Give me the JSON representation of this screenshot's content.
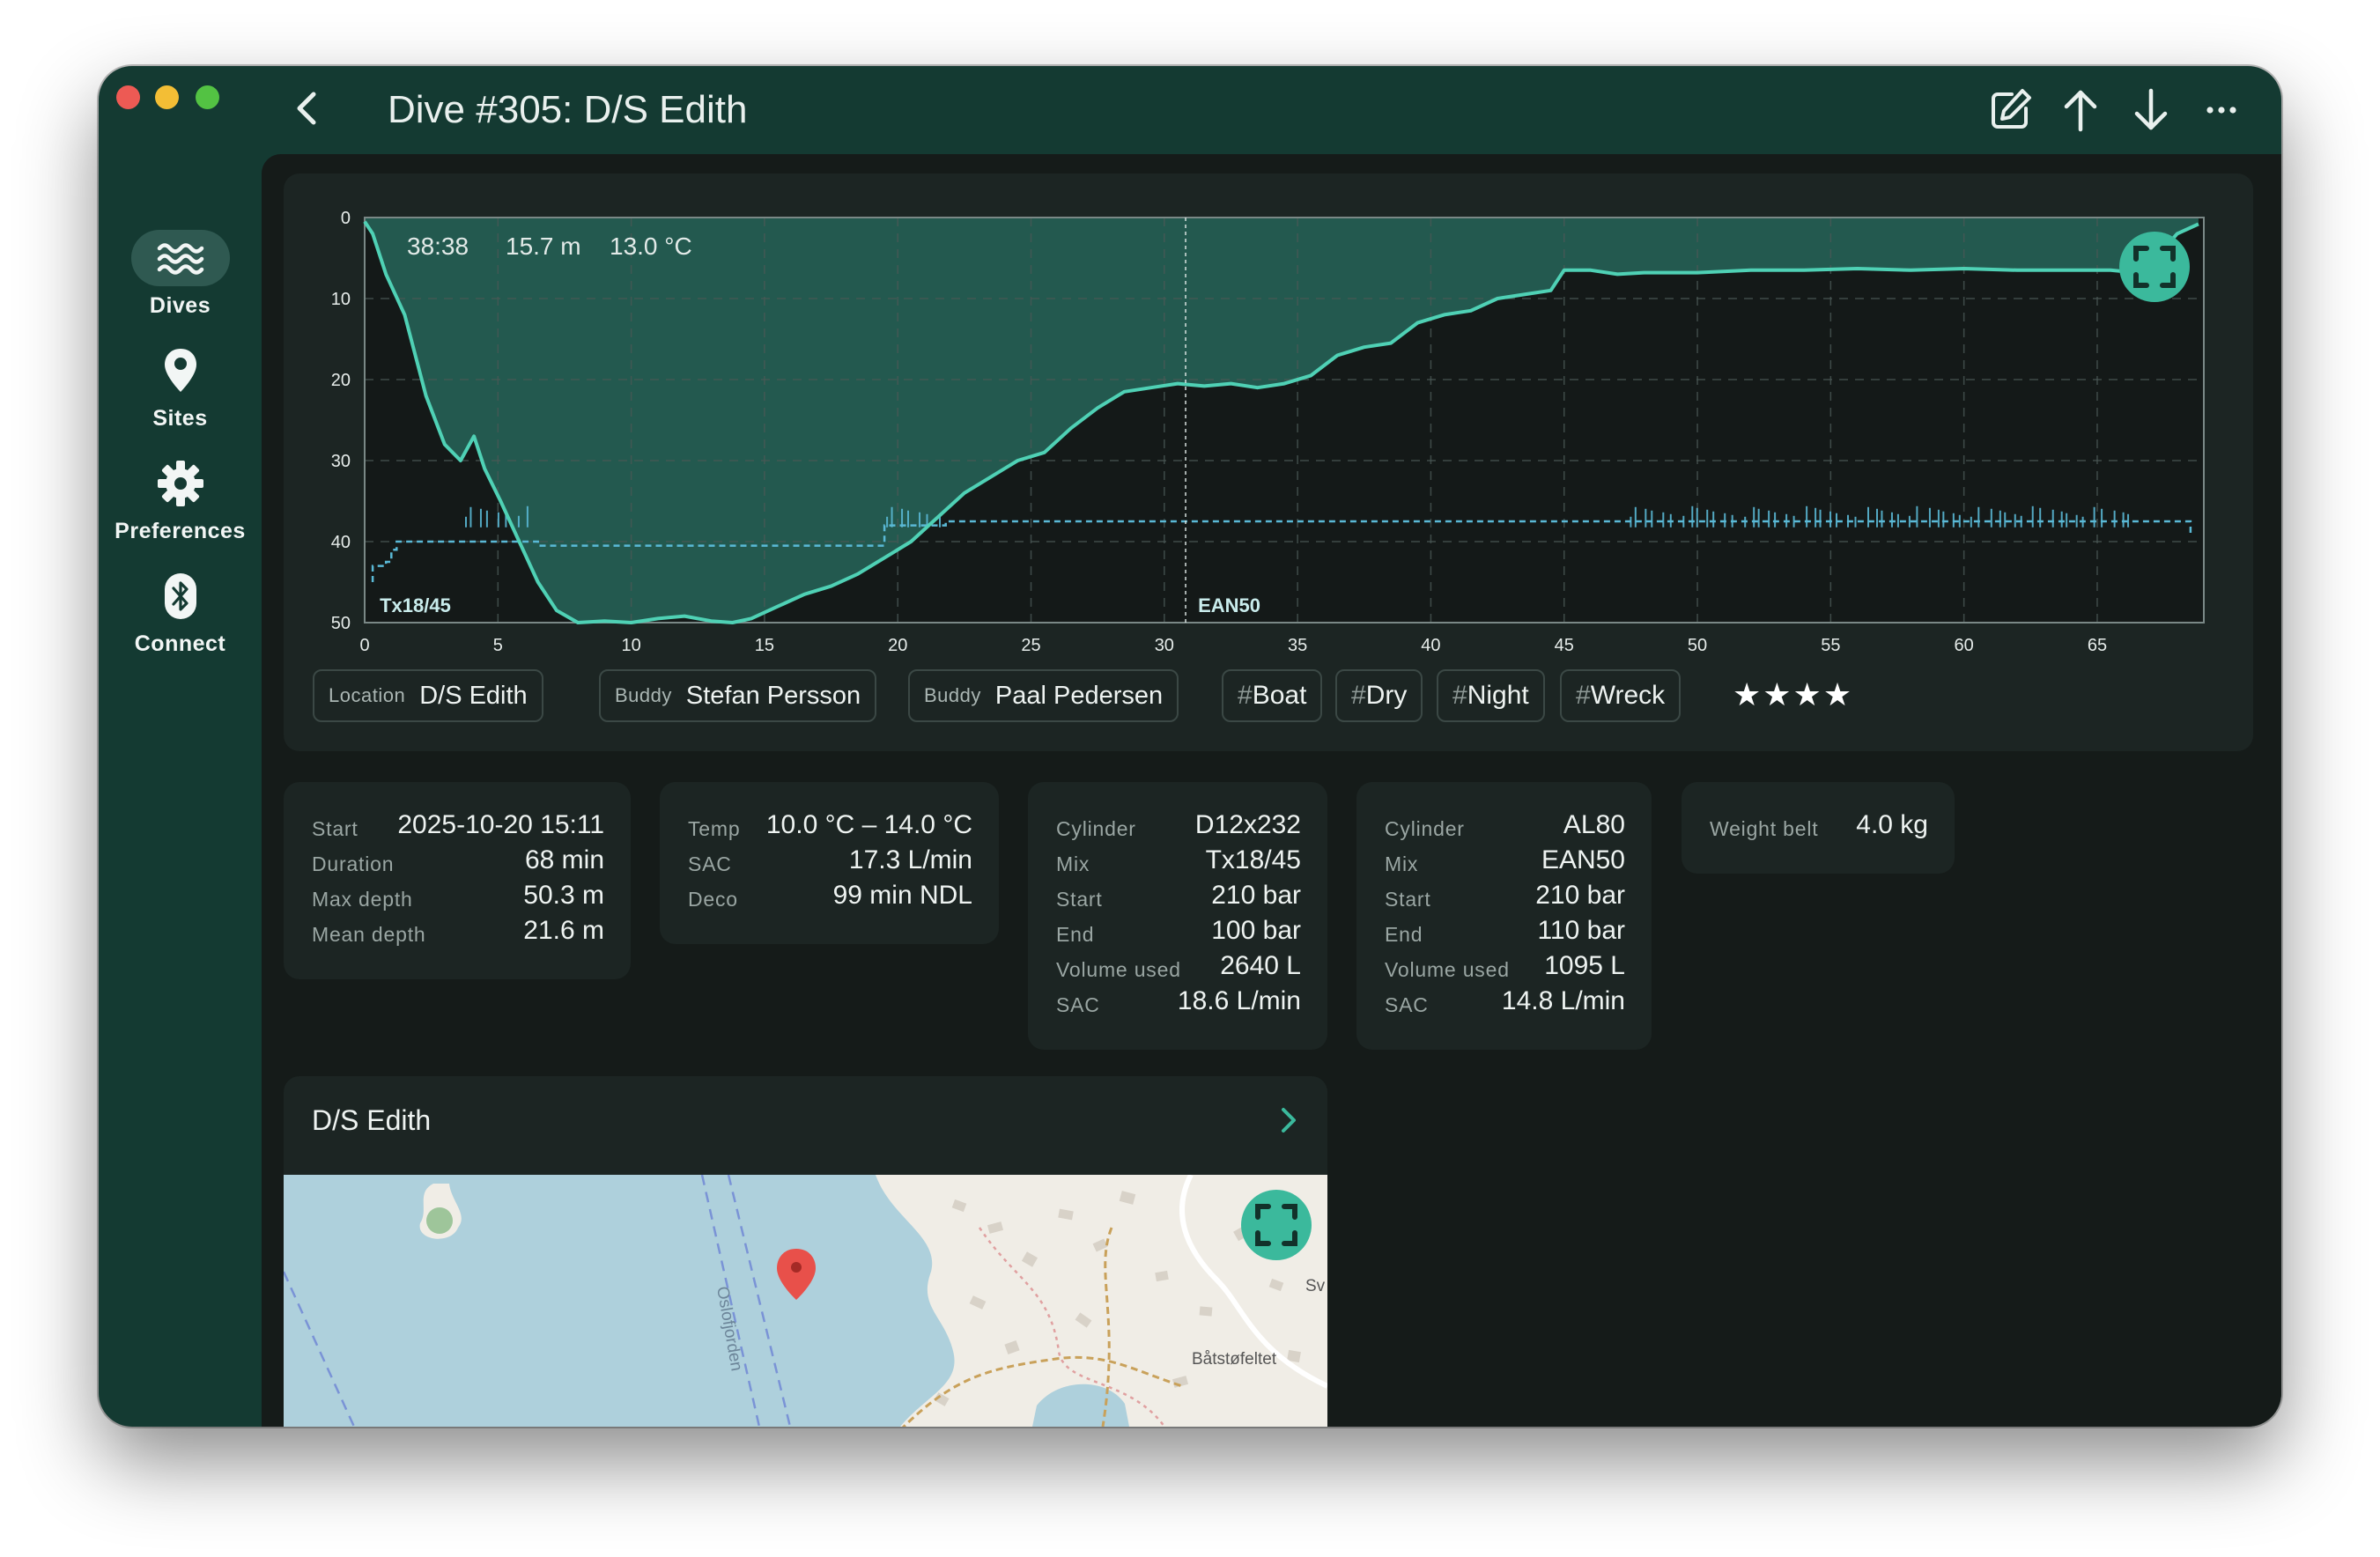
{
  "window": {
    "title": "Dive #305: D/S Edith"
  },
  "toolbar": {
    "icons": [
      "back-icon",
      "edit-icon",
      "arrow-up-icon",
      "arrow-down-icon",
      "more-icon"
    ]
  },
  "sidebar": {
    "items": [
      {
        "label": "Dives",
        "icon": "waves-icon",
        "active": true
      },
      {
        "label": "Sites",
        "icon": "location-pin-icon"
      },
      {
        "label": "Preferences",
        "icon": "gear-icon"
      },
      {
        "label": "Connect",
        "icon": "bluetooth-icon"
      }
    ]
  },
  "chart_data": {
    "type": "line",
    "xlabel": "",
    "ylabel": "",
    "xlim": [
      0,
      69
    ],
    "ylim": [
      50,
      0
    ],
    "x_ticks": [
      "0",
      "5",
      "10",
      "15",
      "20",
      "25",
      "30",
      "35",
      "40",
      "45",
      "50",
      "55",
      "60",
      "65"
    ],
    "y_ticks": [
      "0",
      "10",
      "20",
      "30",
      "40",
      "50"
    ],
    "readout": {
      "time": "38:38",
      "depth": "15.7 m",
      "temp": "13.0 °C"
    },
    "cursor_x": 30.8,
    "gas_labels": [
      {
        "label": "Tx18/45",
        "x": 0.3
      },
      {
        "label": "EAN50",
        "x": 31.0
      }
    ],
    "series": [
      {
        "name": "depth",
        "x": [
          0,
          0.3,
          0.8,
          1.5,
          2.3,
          3,
          3.6,
          4.1,
          4.5,
          5.1,
          5.8,
          6.5,
          7.2,
          8,
          9,
          10,
          11,
          12,
          13,
          13.8,
          14.5,
          15.5,
          16.5,
          17.5,
          18.5,
          19.5,
          20.5,
          21.5,
          22.5,
          23.5,
          24.5,
          25.5,
          26.5,
          27.5,
          28.5,
          29.5,
          30.5,
          31.5,
          32.5,
          33.5,
          34.5,
          35.5,
          36.5,
          37.5,
          38.5,
          39.5,
          40.5,
          41.5,
          42.5,
          43.5,
          44.5,
          45,
          46,
          47,
          48,
          50,
          52,
          54,
          56,
          58,
          60,
          62,
          64,
          65.5,
          66.5,
          67.2,
          68,
          68.8
        ],
        "values": [
          0.5,
          2,
          7,
          12,
          22,
          28,
          30,
          27,
          31,
          35,
          40,
          45,
          48.5,
          50,
          49.8,
          50,
          49.5,
          49.2,
          49.8,
          50,
          49.5,
          48,
          46.5,
          45.5,
          44,
          42,
          40,
          37,
          34,
          32,
          30,
          29,
          26,
          23.5,
          21.5,
          21,
          20.5,
          20.8,
          20.5,
          21,
          20.5,
          19.5,
          17,
          16,
          15.5,
          13,
          12,
          11.5,
          10,
          9.5,
          9,
          6.5,
          6.5,
          7,
          6.8,
          6.8,
          6.5,
          6.5,
          6.3,
          6.5,
          6.3,
          6.5,
          6.5,
          6.5,
          6.8,
          5,
          2,
          0.8
        ]
      },
      {
        "name": "ppO2",
        "x": [
          0.3,
          0.3,
          0.8,
          0.8,
          1.0,
          1.0,
          1.2,
          1.2,
          3.5,
          6.5,
          6.5,
          19.5,
          19.5,
          21.8,
          21.8,
          68.5,
          68.5
        ],
        "values": [
          45,
          43,
          43,
          42.5,
          42.5,
          41,
          41,
          40,
          40,
          40,
          40.5,
          40.5,
          38,
          38,
          37.5,
          37.5,
          39
        ]
      }
    ]
  },
  "details": {
    "chips": [
      {
        "key": "Location",
        "value": "D/S Edith"
      },
      {
        "key": "Buddy",
        "value": "Stefan Persson"
      },
      {
        "key": "Buddy",
        "value": "Paal Pedersen"
      }
    ],
    "tags": [
      "Boat",
      "Dry",
      "Night",
      "Wreck"
    ],
    "rating_stars": "★★★★",
    "rating": 4
  },
  "stats": {
    "summary": [
      {
        "key": "Start",
        "value": "2025-10-20 15:11"
      },
      {
        "key": "Duration",
        "value": "68 min"
      },
      {
        "key": "Max depth",
        "value": "50.3 m"
      },
      {
        "key": "Mean depth",
        "value": "21.6 m"
      }
    ],
    "conditions": [
      {
        "key": "Temp",
        "value": "10.0 °C – 14.0 °C"
      },
      {
        "key": "SAC",
        "value": "17.3 L/min"
      },
      {
        "key": "Deco",
        "value": "99 min NDL"
      }
    ],
    "cylinder1": [
      {
        "key": "Cylinder",
        "value": "D12x232"
      },
      {
        "key": "Mix",
        "value": "Tx18/45"
      },
      {
        "key": "Start",
        "value": "210 bar"
      },
      {
        "key": "End",
        "value": "100 bar"
      },
      {
        "key": "Volume used",
        "value": "2640 L"
      },
      {
        "key": "SAC",
        "value": "18.6 L/min"
      }
    ],
    "cylinder2": [
      {
        "key": "Cylinder",
        "value": "AL80"
      },
      {
        "key": "Mix",
        "value": "EAN50"
      },
      {
        "key": "Start",
        "value": "210 bar"
      },
      {
        "key": "End",
        "value": "110 bar"
      },
      {
        "key": "Volume used",
        "value": "1095 L"
      },
      {
        "key": "SAC",
        "value": "14.8 L/min"
      }
    ],
    "weight": [
      {
        "key": "Weight belt",
        "value": "4.0 kg"
      }
    ]
  },
  "site": {
    "title": "D/S Edith",
    "map_labels": {
      "water": "Oslofjorden",
      "place": "Båtstøfeltet",
      "edge": "Sv"
    }
  },
  "colors": {
    "window_bg": "#143a32",
    "content_bg": "#151b19",
    "card_bg": "#1c2523",
    "depth_line": "#4fd1b5",
    "depth_fill": "#23594f",
    "ppo2_line": "#5ab9d6",
    "accent": "#3bb99c",
    "map_water": "#aed0dc",
    "map_land": "#f0ede6",
    "marker": "#e8504a"
  }
}
